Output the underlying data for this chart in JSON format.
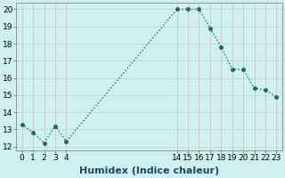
{
  "x": [
    0,
    1,
    2,
    3,
    4,
    14,
    15,
    16,
    17,
    18,
    19,
    20,
    21,
    22,
    23
  ],
  "y": [
    13.3,
    12.8,
    12.2,
    13.2,
    12.3,
    20.0,
    20.0,
    20.0,
    18.9,
    17.8,
    16.5,
    16.5,
    15.4,
    15.3,
    14.9
  ],
  "line_color": "#1a6b5a",
  "marker": "o",
  "marker_size": 2.5,
  "bg_color": "#cff0ee",
  "grid_color_h": "#b8dede",
  "grid_color_v": "#d8c4c4",
  "xlabel": "Humidex (Indice chaleur)",
  "xlabel_fontsize": 8,
  "ylim": [
    11.8,
    20.4
  ],
  "xlim": [
    -0.5,
    23.5
  ],
  "yticks": [
    12,
    13,
    14,
    15,
    16,
    17,
    18,
    19,
    20
  ],
  "xticks": [
    0,
    1,
    2,
    3,
    4,
    14,
    15,
    16,
    17,
    18,
    19,
    20,
    21,
    22,
    23
  ],
  "tick_fontsize": 6.5,
  "linewidth": 1.0
}
